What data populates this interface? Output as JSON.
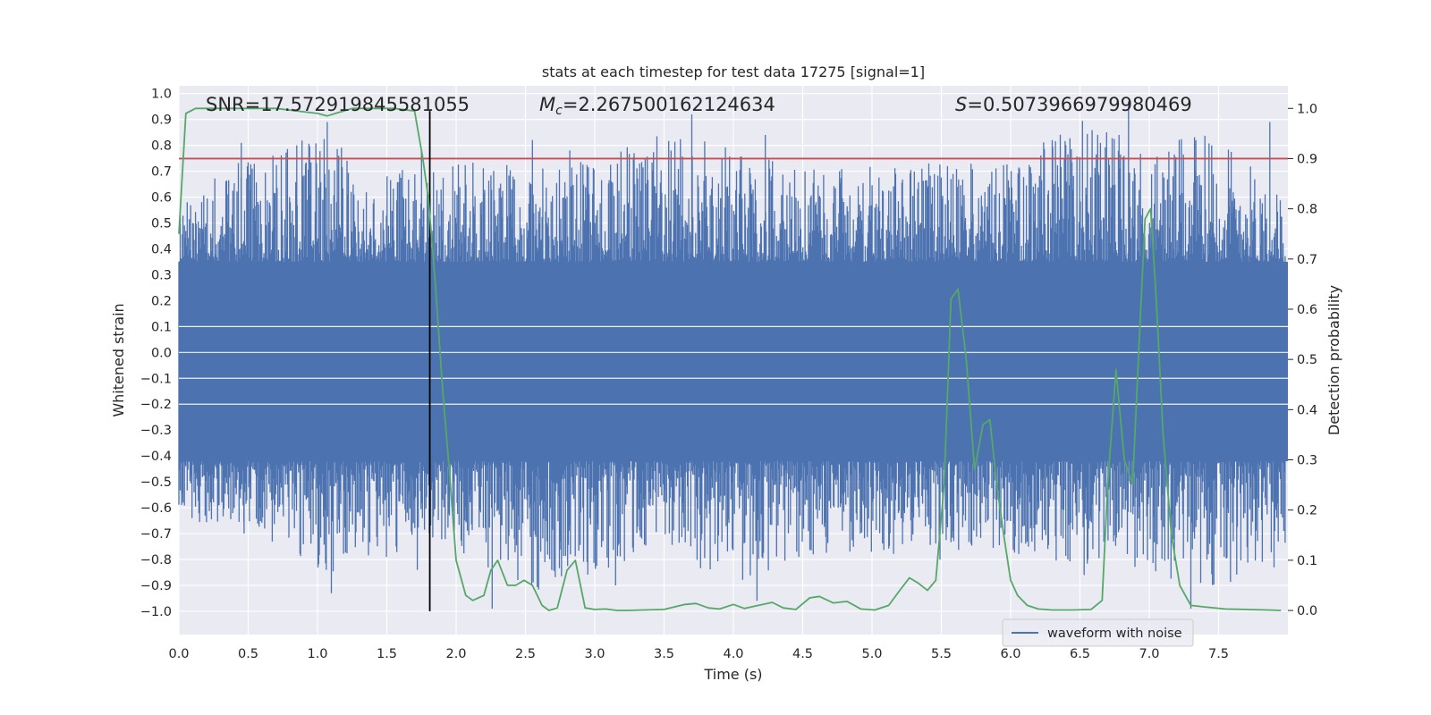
{
  "chart_data": {
    "type": "line",
    "title": "stats at each timestep for test data 17275 [signal=1]",
    "xlabel": "Time (s)",
    "ylabel": "Whitened strain",
    "y2label": "Detection probability",
    "xlim": [
      0.0,
      8.0
    ],
    "ylim": [
      -1.09,
      1.03
    ],
    "y2lim": [
      -0.048,
      1.045
    ],
    "xticks": [
      0.0,
      0.5,
      1.0,
      1.5,
      2.0,
      2.5,
      3.0,
      3.5,
      4.0,
      4.5,
      5.0,
      5.5,
      6.0,
      6.5,
      7.0,
      7.5
    ],
    "xtick_labels": [
      "0.0",
      "0.5",
      "1.0",
      "1.5",
      "2.0",
      "2.5",
      "3.0",
      "3.5",
      "4.0",
      "4.5",
      "5.0",
      "5.5",
      "6.0",
      "6.5",
      "7.0",
      "7.5"
    ],
    "yticks": [
      1.0,
      0.9,
      0.8,
      0.7,
      0.6,
      0.5,
      0.4,
      0.3,
      0.2,
      0.1,
      0.0,
      -0.1,
      -0.2,
      -0.3,
      -0.4,
      -0.5,
      -0.6,
      -0.7,
      -0.8,
      -0.9,
      -1.0
    ],
    "ytick_labels": [
      "1.0",
      "0.9",
      "0.8",
      "0.7",
      "0.6",
      "0.5",
      "0.4",
      "0.3",
      "0.2",
      "0.1",
      "0.0",
      "−0.1",
      "−0.2",
      "−0.3",
      "−0.4",
      "−0.5",
      "−0.6",
      "−0.7",
      "−0.8",
      "−0.9",
      "−1.0"
    ],
    "y2ticks": [
      1.0,
      0.9,
      0.8,
      0.7,
      0.6,
      0.5,
      0.4,
      0.3,
      0.2,
      0.1,
      0.0
    ],
    "y2tick_labels": [
      "1.0",
      "0.9",
      "0.8",
      "0.7",
      "0.6",
      "0.5",
      "0.4",
      "0.3",
      "0.2",
      "0.1",
      "0.0"
    ],
    "grid": true,
    "legend": {
      "position": "lower-right",
      "entries": [
        "waveform with noise"
      ]
    },
    "annotations": {
      "snr": "SNR=17.572919845581055",
      "mc_symbol": "M",
      "mc_sub": "c",
      "mc_value": "=2.267500162124634",
      "s_symbol": "S",
      "s_value": "=0.5073966979980469"
    },
    "threshold_line": {
      "y2": 0.9
    },
    "vertical_marker": {
      "x": 1.81
    },
    "waveform": {
      "name": "waveform with noise",
      "typical_range": [
        -0.42,
        0.35
      ],
      "envelope_x": [
        0.0,
        0.5,
        1.0,
        1.5,
        1.8,
        2.0,
        2.5,
        3.0,
        3.5,
        4.0,
        4.5,
        5.0,
        5.5,
        6.0,
        6.5,
        7.0,
        7.5,
        7.98
      ],
      "envelope_max": [
        0.6,
        0.81,
        0.89,
        0.76,
        0.74,
        0.78,
        0.77,
        0.78,
        0.92,
        0.84,
        0.74,
        0.78,
        0.78,
        0.77,
        0.97,
        0.84,
        0.92,
        0.63
      ],
      "envelope_min": [
        -0.7,
        -0.68,
        -0.93,
        -0.84,
        -0.75,
        -0.8,
        -0.99,
        -0.9,
        -0.8,
        -0.96,
        -0.85,
        -0.83,
        -0.8,
        -0.83,
        -0.86,
        -0.9,
        -0.99,
        -0.83
      ],
      "spikes_up": [
        [
          0.45,
          0.81
        ],
        [
          0.85,
          0.8
        ],
        [
          1.07,
          0.89
        ],
        [
          1.75,
          0.78
        ],
        [
          2.55,
          0.82
        ],
        [
          2.82,
          0.78
        ],
        [
          3.55,
          0.78
        ],
        [
          3.7,
          0.92
        ],
        [
          4.23,
          0.84
        ],
        [
          6.3,
          0.82
        ],
        [
          6.85,
          0.97
        ],
        [
          7.45,
          0.8
        ],
        [
          7.87,
          0.89
        ]
      ],
      "spikes_down": [
        [
          0.47,
          -0.7
        ],
        [
          1.1,
          -0.93
        ],
        [
          1.72,
          -0.84
        ],
        [
          2.26,
          -0.99
        ],
        [
          3.15,
          -0.9
        ],
        [
          4.17,
          -0.96
        ],
        [
          5.49,
          -0.8
        ],
        [
          6.53,
          -0.86
        ],
        [
          7.3,
          -0.99
        ],
        [
          7.9,
          -0.83
        ]
      ]
    },
    "series": [
      {
        "name": "",
        "axis": "right",
        "color": "#55a868",
        "x": [
          0.0,
          0.05,
          0.12,
          0.3,
          0.5,
          0.7,
          0.85,
          1.0,
          1.07,
          1.13,
          1.25,
          1.4,
          1.55,
          1.7,
          1.76,
          1.8,
          1.85,
          1.9,
          1.95,
          2.0,
          2.07,
          2.12,
          2.2,
          2.25,
          2.3,
          2.37,
          2.43,
          2.49,
          2.55,
          2.62,
          2.67,
          2.73,
          2.8,
          2.86,
          2.93,
          3.0,
          3.08,
          3.16,
          3.24,
          3.35,
          3.5,
          3.65,
          3.73,
          3.82,
          3.9,
          4.0,
          4.08,
          4.18,
          4.28,
          4.36,
          4.45,
          4.55,
          4.62,
          4.72,
          4.82,
          4.92,
          5.02,
          5.12,
          5.2,
          5.27,
          5.33,
          5.4,
          5.46,
          5.52,
          5.57,
          5.62,
          5.68,
          5.74,
          5.8,
          5.85,
          5.9,
          5.95,
          6.0,
          6.05,
          6.12,
          6.2,
          6.3,
          6.45,
          6.58,
          6.66,
          6.7,
          6.76,
          6.82,
          6.88,
          6.93,
          6.97,
          7.01,
          7.05,
          7.1,
          7.16,
          7.22,
          7.3,
          7.4,
          7.55,
          7.7,
          7.85,
          7.95
        ],
        "values": [
          0.75,
          0.99,
          1.0,
          1.0,
          1.0,
          1.0,
          0.995,
          0.99,
          0.985,
          0.99,
          1.0,
          1.0,
          1.0,
          0.995,
          0.9,
          0.82,
          0.65,
          0.45,
          0.28,
          0.1,
          0.03,
          0.02,
          0.03,
          0.08,
          0.1,
          0.05,
          0.05,
          0.06,
          0.05,
          0.01,
          0.0,
          0.005,
          0.08,
          0.1,
          0.005,
          0.002,
          0.003,
          0.0,
          0.0,
          0.001,
          0.002,
          0.012,
          0.014,
          0.005,
          0.003,
          0.012,
          0.004,
          0.01,
          0.016,
          0.005,
          0.002,
          0.025,
          0.028,
          0.015,
          0.018,
          0.003,
          0.001,
          0.01,
          0.04,
          0.065,
          0.055,
          0.04,
          0.06,
          0.25,
          0.62,
          0.64,
          0.5,
          0.28,
          0.37,
          0.38,
          0.25,
          0.15,
          0.06,
          0.03,
          0.01,
          0.003,
          0.001,
          0.001,
          0.002,
          0.02,
          0.25,
          0.48,
          0.3,
          0.25,
          0.55,
          0.78,
          0.8,
          0.62,
          0.35,
          0.15,
          0.05,
          0.01,
          0.007,
          0.003,
          0.002,
          0.001,
          0.0
        ]
      }
    ]
  }
}
